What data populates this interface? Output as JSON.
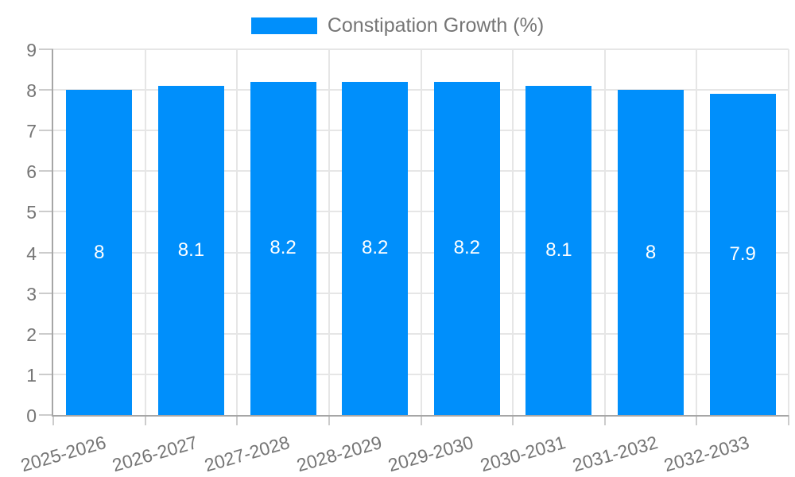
{
  "legend": {
    "position": "top",
    "items": [
      {
        "label": "Constipation Growth (%)",
        "color": "#008FFB"
      }
    ]
  },
  "chart_data": {
    "type": "bar",
    "title": "",
    "xlabel": "",
    "ylabel": "",
    "categories": [
      "2025-2026",
      "2026-2027",
      "2027-2028",
      "2028-2029",
      "2029-2030",
      "2030-2031",
      "2031-2032",
      "2032-2033"
    ],
    "series": [
      {
        "name": "Constipation Growth (%)",
        "color": "#008FFB",
        "values": [
          8,
          8.1,
          8.2,
          8.2,
          8.2,
          8.1,
          8,
          7.9
        ],
        "value_labels": [
          "8",
          "8.1",
          "8.2",
          "8.2",
          "8.2",
          "8.1",
          "8",
          "7.9"
        ]
      }
    ],
    "ylim": [
      0,
      9
    ],
    "yticks": [
      0,
      1,
      2,
      3,
      4,
      5,
      6,
      7,
      8,
      9
    ],
    "grid": true,
    "legend_position": "top",
    "x_label_rotation_deg": -16,
    "value_label_position": "center-inside"
  },
  "style": {
    "bar_color": "#008FFB",
    "value_label_color": "#ffffff",
    "axis_text_color": "#757575",
    "grid_color": "#e6e6e6",
    "tick_color": "#cccccc",
    "axis_line_color": "#a6a6a6",
    "background": "#ffffff"
  }
}
